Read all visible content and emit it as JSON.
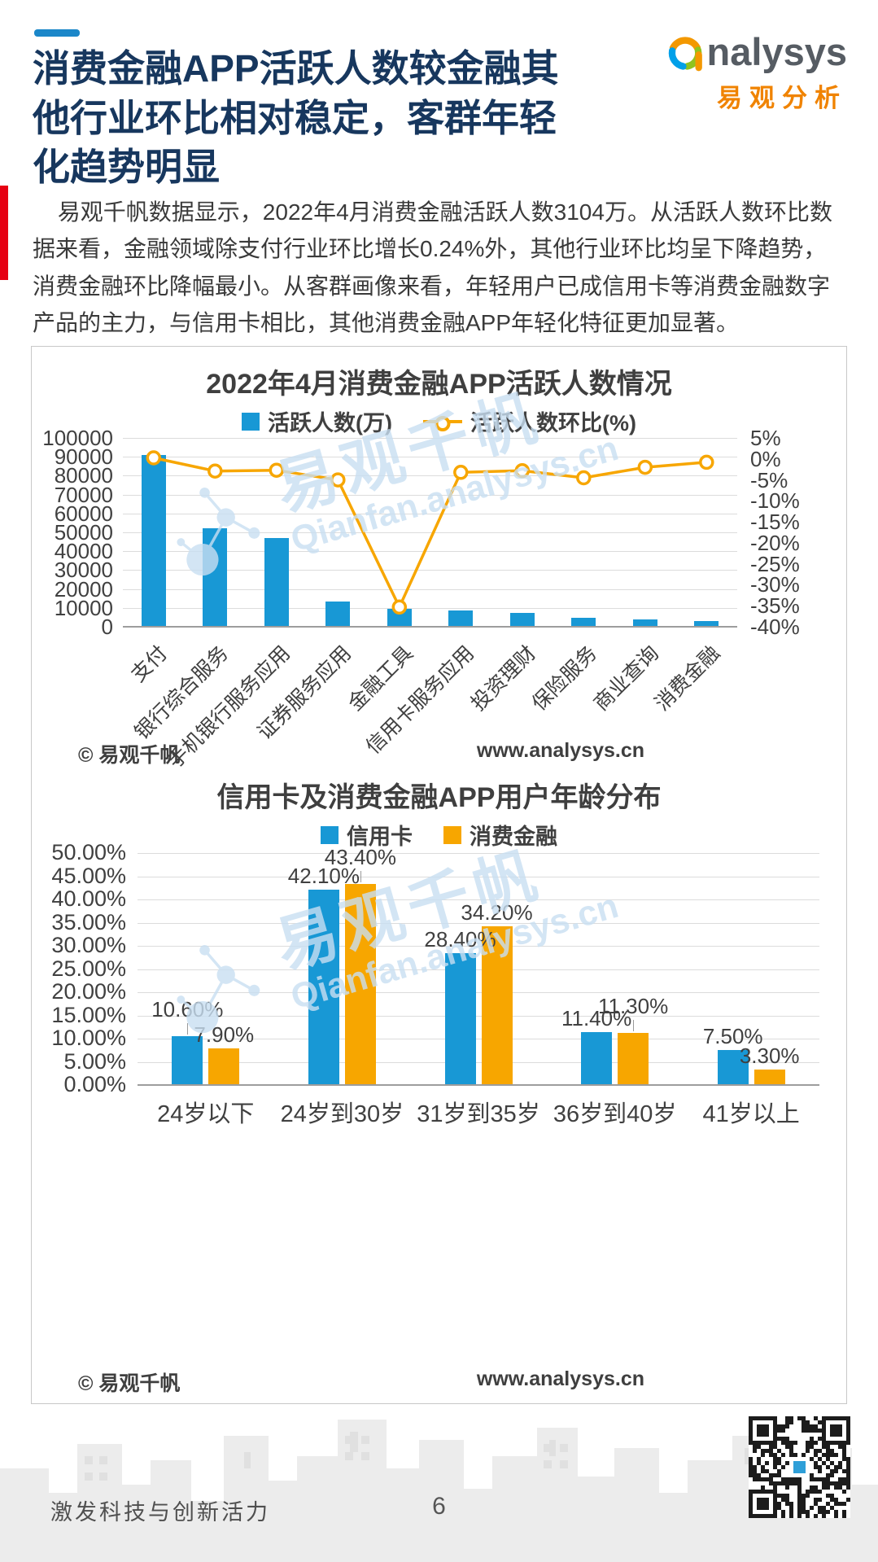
{
  "header": {
    "title": "消费金融APP活跃人数较金融其他行业环比相对稳定，客群年轻化趋势明显",
    "paragraph": "易观千帆数据显示，2022年4月消费金融活跃人数3104万。从活跃人数环比数据来看，金融领域除支付行业环比增长0.24%外，其他行业环比均呈下降趋势，消费金融环比降幅最小。从客群画像来看，年轻用户已成信用卡等消费金融数字产品的主力，与信用卡相比，其他消费金融APP年轻化特征更加显著。"
  },
  "logo": {
    "en": "analysys",
    "cn": "易观分析"
  },
  "watermark": {
    "cn": "易观千帆",
    "en": "Qianfan.analysys.cn"
  },
  "colors": {
    "bar_blue": "#1898D5",
    "line_orange": "#F7A600",
    "title_navy": "#17375E",
    "strip_red": "#E60012",
    "watermark_blue": "#C9DFF2",
    "logo_orange": "#F08300",
    "logo_swirl": [
      "#F39800",
      "#8FC31F",
      "#00A0E9"
    ]
  },
  "chart_data": [
    {
      "type": "bar+line",
      "title": "2022年4月消费金融APP活跃人数情况",
      "categories": [
        "支付",
        "银行综合服务",
        "手机银行服务应用",
        "证券服务应用",
        "金融工具",
        "信用卡服务应用",
        "投资理财",
        "保险服务",
        "商业查询",
        "消费金融"
      ],
      "series": [
        {
          "name": "活跃人数(万)",
          "type": "bar",
          "axis": "left",
          "values": [
            91000,
            52000,
            47000,
            13500,
            9500,
            8600,
            7300,
            4700,
            4000,
            3104
          ]
        },
        {
          "name": "活跃人数环比(%)",
          "type": "line",
          "axis": "right",
          "values": [
            0.24,
            -2.9,
            -2.7,
            -5.0,
            -35.3,
            -3.2,
            -2.8,
            -4.5,
            -2.0,
            -0.8
          ]
        }
      ],
      "left_axis": {
        "min": 0,
        "max": 100000,
        "step": 10000
      },
      "right_axis": {
        "min": -40,
        "max": 5,
        "step": 5,
        "suffix": "%"
      },
      "grid": true,
      "legend_position": "top",
      "source": "© 易观千帆",
      "site": "www.analysys.cn"
    },
    {
      "type": "bar",
      "title": "信用卡及消费金融APP用户年龄分布",
      "categories": [
        "24岁以下",
        "24岁到30岁",
        "31岁到35岁",
        "36岁到40岁",
        "41岁以上"
      ],
      "series": [
        {
          "name": "信用卡",
          "values": [
            10.6,
            42.1,
            28.4,
            11.4,
            7.5
          ],
          "labels": [
            "10.60%",
            "42.10%",
            "28.40%",
            "11.40%",
            "7.50%"
          ],
          "raised": [
            true,
            false,
            false,
            false,
            false
          ]
        },
        {
          "name": "消费金融",
          "values": [
            7.9,
            43.4,
            34.2,
            11.3,
            3.3
          ],
          "labels": [
            "7.90%",
            "43.40%",
            "34.20%",
            "11.30%",
            "3.30%"
          ],
          "raised": [
            false,
            true,
            false,
            true,
            false
          ]
        }
      ],
      "y_axis": {
        "min": 0,
        "max": 50,
        "step": 5,
        "suffix": "%"
      },
      "grid": true,
      "legend_position": "top",
      "source": "© 易观千帆",
      "site": "www.analysys.cn"
    }
  ],
  "footer": {
    "slogan": "激发科技与创新活力",
    "page": "6"
  }
}
